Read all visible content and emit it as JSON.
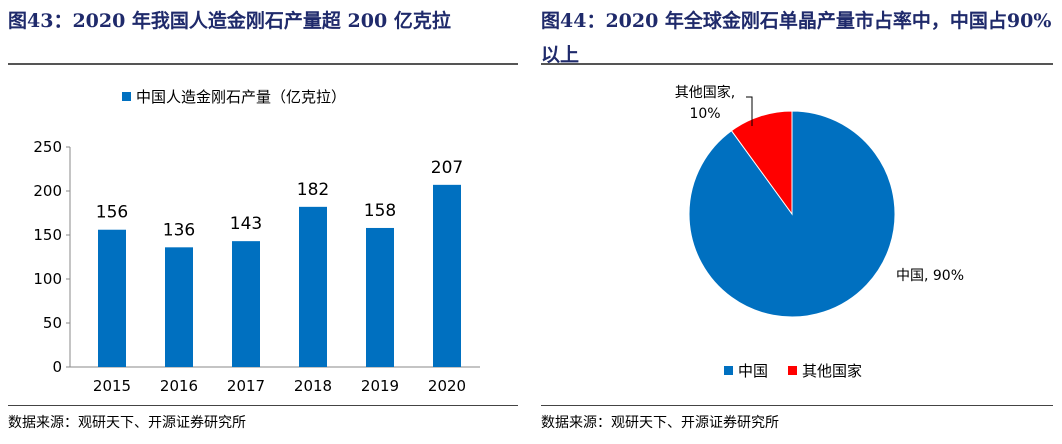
{
  "left": {
    "title": "图43：2020 年我国人造金刚石产量超 200 亿克拉",
    "source": "数据来源：观研天下、开源证券研究所"
  },
  "right": {
    "title": "图44：2020  年全球金刚石单晶产量市占率中，中国占90%以上",
    "source": "数据来源：观研天下、开源证券研究所"
  },
  "chart_data": [
    {
      "type": "bar",
      "title": "",
      "legend": [
        "中国人造金刚石产量（亿克拉）"
      ],
      "legend_position": "top",
      "categories": [
        "2015",
        "2016",
        "2017",
        "2018",
        "2019",
        "2020"
      ],
      "values": [
        156,
        136,
        143,
        182,
        158,
        207
      ],
      "ylim": [
        0,
        250
      ],
      "yticks": [
        "0",
        "50",
        "100",
        "150",
        "200",
        "250"
      ],
      "color": "#0070C0"
    },
    {
      "type": "pie",
      "slices": [
        {
          "label": "中国",
          "value": 90,
          "data_label": "中国, 90%",
          "color": "#0070C0"
        },
        {
          "label": "其他国家",
          "value": 10,
          "data_label": "其他国家, 10%",
          "color": "#FF0000"
        }
      ],
      "legend": [
        "中国",
        "其他国家"
      ],
      "legend_position": "bottom"
    }
  ]
}
